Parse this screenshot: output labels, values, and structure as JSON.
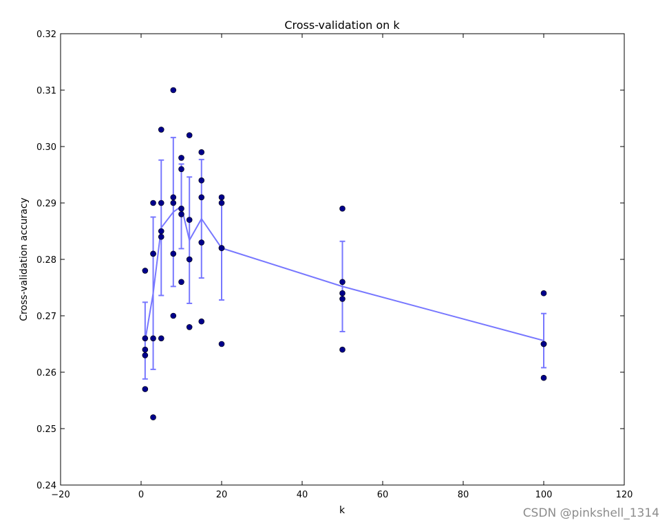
{
  "chart_data": {
    "type": "scatter",
    "title": "Cross-validation on k",
    "xlabel": "k",
    "ylabel": "Cross-validation accuracy",
    "xlim": [
      -20,
      120
    ],
    "ylim": [
      0.24,
      0.32
    ],
    "xticks": [
      -20,
      0,
      20,
      40,
      60,
      80,
      100,
      120
    ],
    "xtick_labels": [
      "−20",
      "0",
      "20",
      "40",
      "60",
      "80",
      "100",
      "120"
    ],
    "yticks": [
      0.24,
      0.25,
      0.26,
      0.27,
      0.28,
      0.29,
      0.3,
      0.31,
      0.32
    ],
    "ytick_labels": [
      "0.24",
      "0.25",
      "0.26",
      "0.27",
      "0.28",
      "0.29",
      "0.30",
      "0.31",
      "0.32"
    ],
    "grid": false,
    "scatter_points": [
      {
        "x": 1,
        "y": 0.278
      },
      {
        "x": 1,
        "y": 0.266
      },
      {
        "x": 1,
        "y": 0.264
      },
      {
        "x": 1,
        "y": 0.263
      },
      {
        "x": 1,
        "y": 0.257
      },
      {
        "x": 3,
        "y": 0.29
      },
      {
        "x": 3,
        "y": 0.281
      },
      {
        "x": 3,
        "y": 0.266
      },
      {
        "x": 3,
        "y": 0.252
      },
      {
        "x": 3,
        "y": 0.281
      },
      {
        "x": 5,
        "y": 0.303
      },
      {
        "x": 5,
        "y": 0.29
      },
      {
        "x": 5,
        "y": 0.285
      },
      {
        "x": 5,
        "y": 0.284
      },
      {
        "x": 5,
        "y": 0.266
      },
      {
        "x": 8,
        "y": 0.31
      },
      {
        "x": 8,
        "y": 0.291
      },
      {
        "x": 8,
        "y": 0.29
      },
      {
        "x": 8,
        "y": 0.281
      },
      {
        "x": 8,
        "y": 0.27
      },
      {
        "x": 10,
        "y": 0.298
      },
      {
        "x": 10,
        "y": 0.296
      },
      {
        "x": 10,
        "y": 0.289
      },
      {
        "x": 10,
        "y": 0.288
      },
      {
        "x": 10,
        "y": 0.276
      },
      {
        "x": 12,
        "y": 0.302
      },
      {
        "x": 12,
        "y": 0.287
      },
      {
        "x": 12,
        "y": 0.28
      },
      {
        "x": 12,
        "y": 0.28
      },
      {
        "x": 12,
        "y": 0.268
      },
      {
        "x": 15,
        "y": 0.299
      },
      {
        "x": 15,
        "y": 0.294
      },
      {
        "x": 15,
        "y": 0.291
      },
      {
        "x": 15,
        "y": 0.283
      },
      {
        "x": 15,
        "y": 0.269
      },
      {
        "x": 20,
        "y": 0.291
      },
      {
        "x": 20,
        "y": 0.29
      },
      {
        "x": 20,
        "y": 0.282
      },
      {
        "x": 20,
        "y": 0.282
      },
      {
        "x": 20,
        "y": 0.265
      },
      {
        "x": 50,
        "y": 0.289
      },
      {
        "x": 50,
        "y": 0.276
      },
      {
        "x": 50,
        "y": 0.274
      },
      {
        "x": 50,
        "y": 0.273
      },
      {
        "x": 50,
        "y": 0.264
      },
      {
        "x": 100,
        "y": 0.274
      },
      {
        "x": 100,
        "y": 0.265
      },
      {
        "x": 100,
        "y": 0.265
      },
      {
        "x": 100,
        "y": 0.265
      },
      {
        "x": 100,
        "y": 0.259
      }
    ],
    "mean_series": {
      "x": [
        1,
        3,
        5,
        8,
        10,
        12,
        15,
        20,
        50,
        100
      ],
      "y": [
        0.2656,
        0.274,
        0.2856,
        0.2884,
        0.2894,
        0.2834,
        0.2872,
        0.282,
        0.2752,
        0.2656
      ],
      "err": [
        0.0068,
        0.0135,
        0.012,
        0.0132,
        0.0075,
        0.0112,
        0.0105,
        0.0092,
        0.008,
        0.0048
      ]
    },
    "colors": {
      "points": "#00008b",
      "line": "#7777ff"
    }
  },
  "watermark": "CSDN @pinkshell_1314"
}
